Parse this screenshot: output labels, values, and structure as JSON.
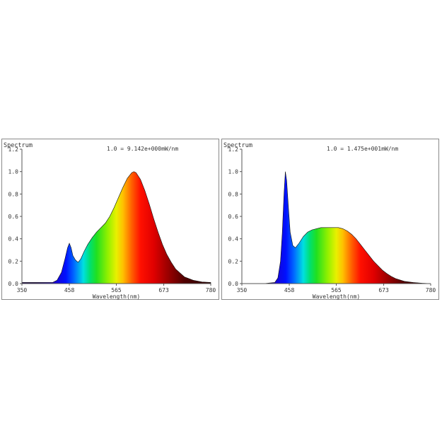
{
  "chart_data": [
    {
      "type": "area",
      "title": "Spectrum",
      "annotation": "1.0 = 9.142e+000mW/nm",
      "xlabel": "Wavelength(nm)",
      "ylabel": "",
      "xlim": [
        350,
        780
      ],
      "ylim": [
        0,
        1.2
      ],
      "x_ticks": [
        "350",
        "458",
        "565",
        "673",
        "780"
      ],
      "y_ticks": [
        "0.0",
        "0.2",
        "0.4",
        "0.6",
        "0.8",
        "1.0",
        "1.2"
      ],
      "grid": false,
      "fill": "visible-spectrum gradient",
      "x": [
        350,
        380,
        420,
        430,
        440,
        448,
        454,
        458,
        462,
        466,
        472,
        478,
        484,
        492,
        500,
        510,
        520,
        530,
        540,
        550,
        560,
        570,
        580,
        590,
        600,
        605,
        610,
        620,
        630,
        640,
        650,
        660,
        670,
        680,
        690,
        700,
        720,
        740,
        760,
        780
      ],
      "values": [
        0.01,
        0.01,
        0.01,
        0.03,
        0.1,
        0.22,
        0.32,
        0.36,
        0.32,
        0.25,
        0.21,
        0.19,
        0.22,
        0.29,
        0.35,
        0.41,
        0.46,
        0.5,
        0.54,
        0.6,
        0.68,
        0.77,
        0.86,
        0.94,
        0.99,
        1.0,
        0.99,
        0.93,
        0.83,
        0.71,
        0.58,
        0.46,
        0.35,
        0.26,
        0.19,
        0.13,
        0.06,
        0.03,
        0.015,
        0.01
      ]
    },
    {
      "type": "area",
      "title": "Spectrum",
      "annotation": "1.0 = 1.475e+001mW/nm",
      "xlabel": "Wavelength(nm)",
      "ylabel": "",
      "xlim": [
        350,
        780
      ],
      "ylim": [
        0,
        1.2
      ],
      "x_ticks": [
        "350",
        "458",
        "565",
        "673",
        "780"
      ],
      "y_ticks": [
        "0.0",
        "0.2",
        "0.4",
        "0.6",
        "0.8",
        "1.0",
        "1.2"
      ],
      "grid": false,
      "fill": "visible-spectrum gradient",
      "x": [
        350,
        400,
        425,
        432,
        438,
        442,
        446,
        449,
        452,
        456,
        460,
        466,
        472,
        480,
        490,
        500,
        510,
        520,
        530,
        540,
        550,
        560,
        570,
        580,
        590,
        600,
        610,
        620,
        630,
        640,
        650,
        660,
        670,
        680,
        690,
        700,
        720,
        740,
        760,
        780
      ],
      "values": [
        0.0,
        0.0,
        0.01,
        0.05,
        0.2,
        0.45,
        0.8,
        1.0,
        0.92,
        0.68,
        0.46,
        0.34,
        0.32,
        0.36,
        0.42,
        0.46,
        0.48,
        0.49,
        0.5,
        0.5,
        0.5,
        0.5,
        0.5,
        0.49,
        0.47,
        0.44,
        0.4,
        0.35,
        0.3,
        0.25,
        0.2,
        0.16,
        0.12,
        0.09,
        0.065,
        0.045,
        0.02,
        0.01,
        0.004,
        0.0
      ]
    }
  ]
}
